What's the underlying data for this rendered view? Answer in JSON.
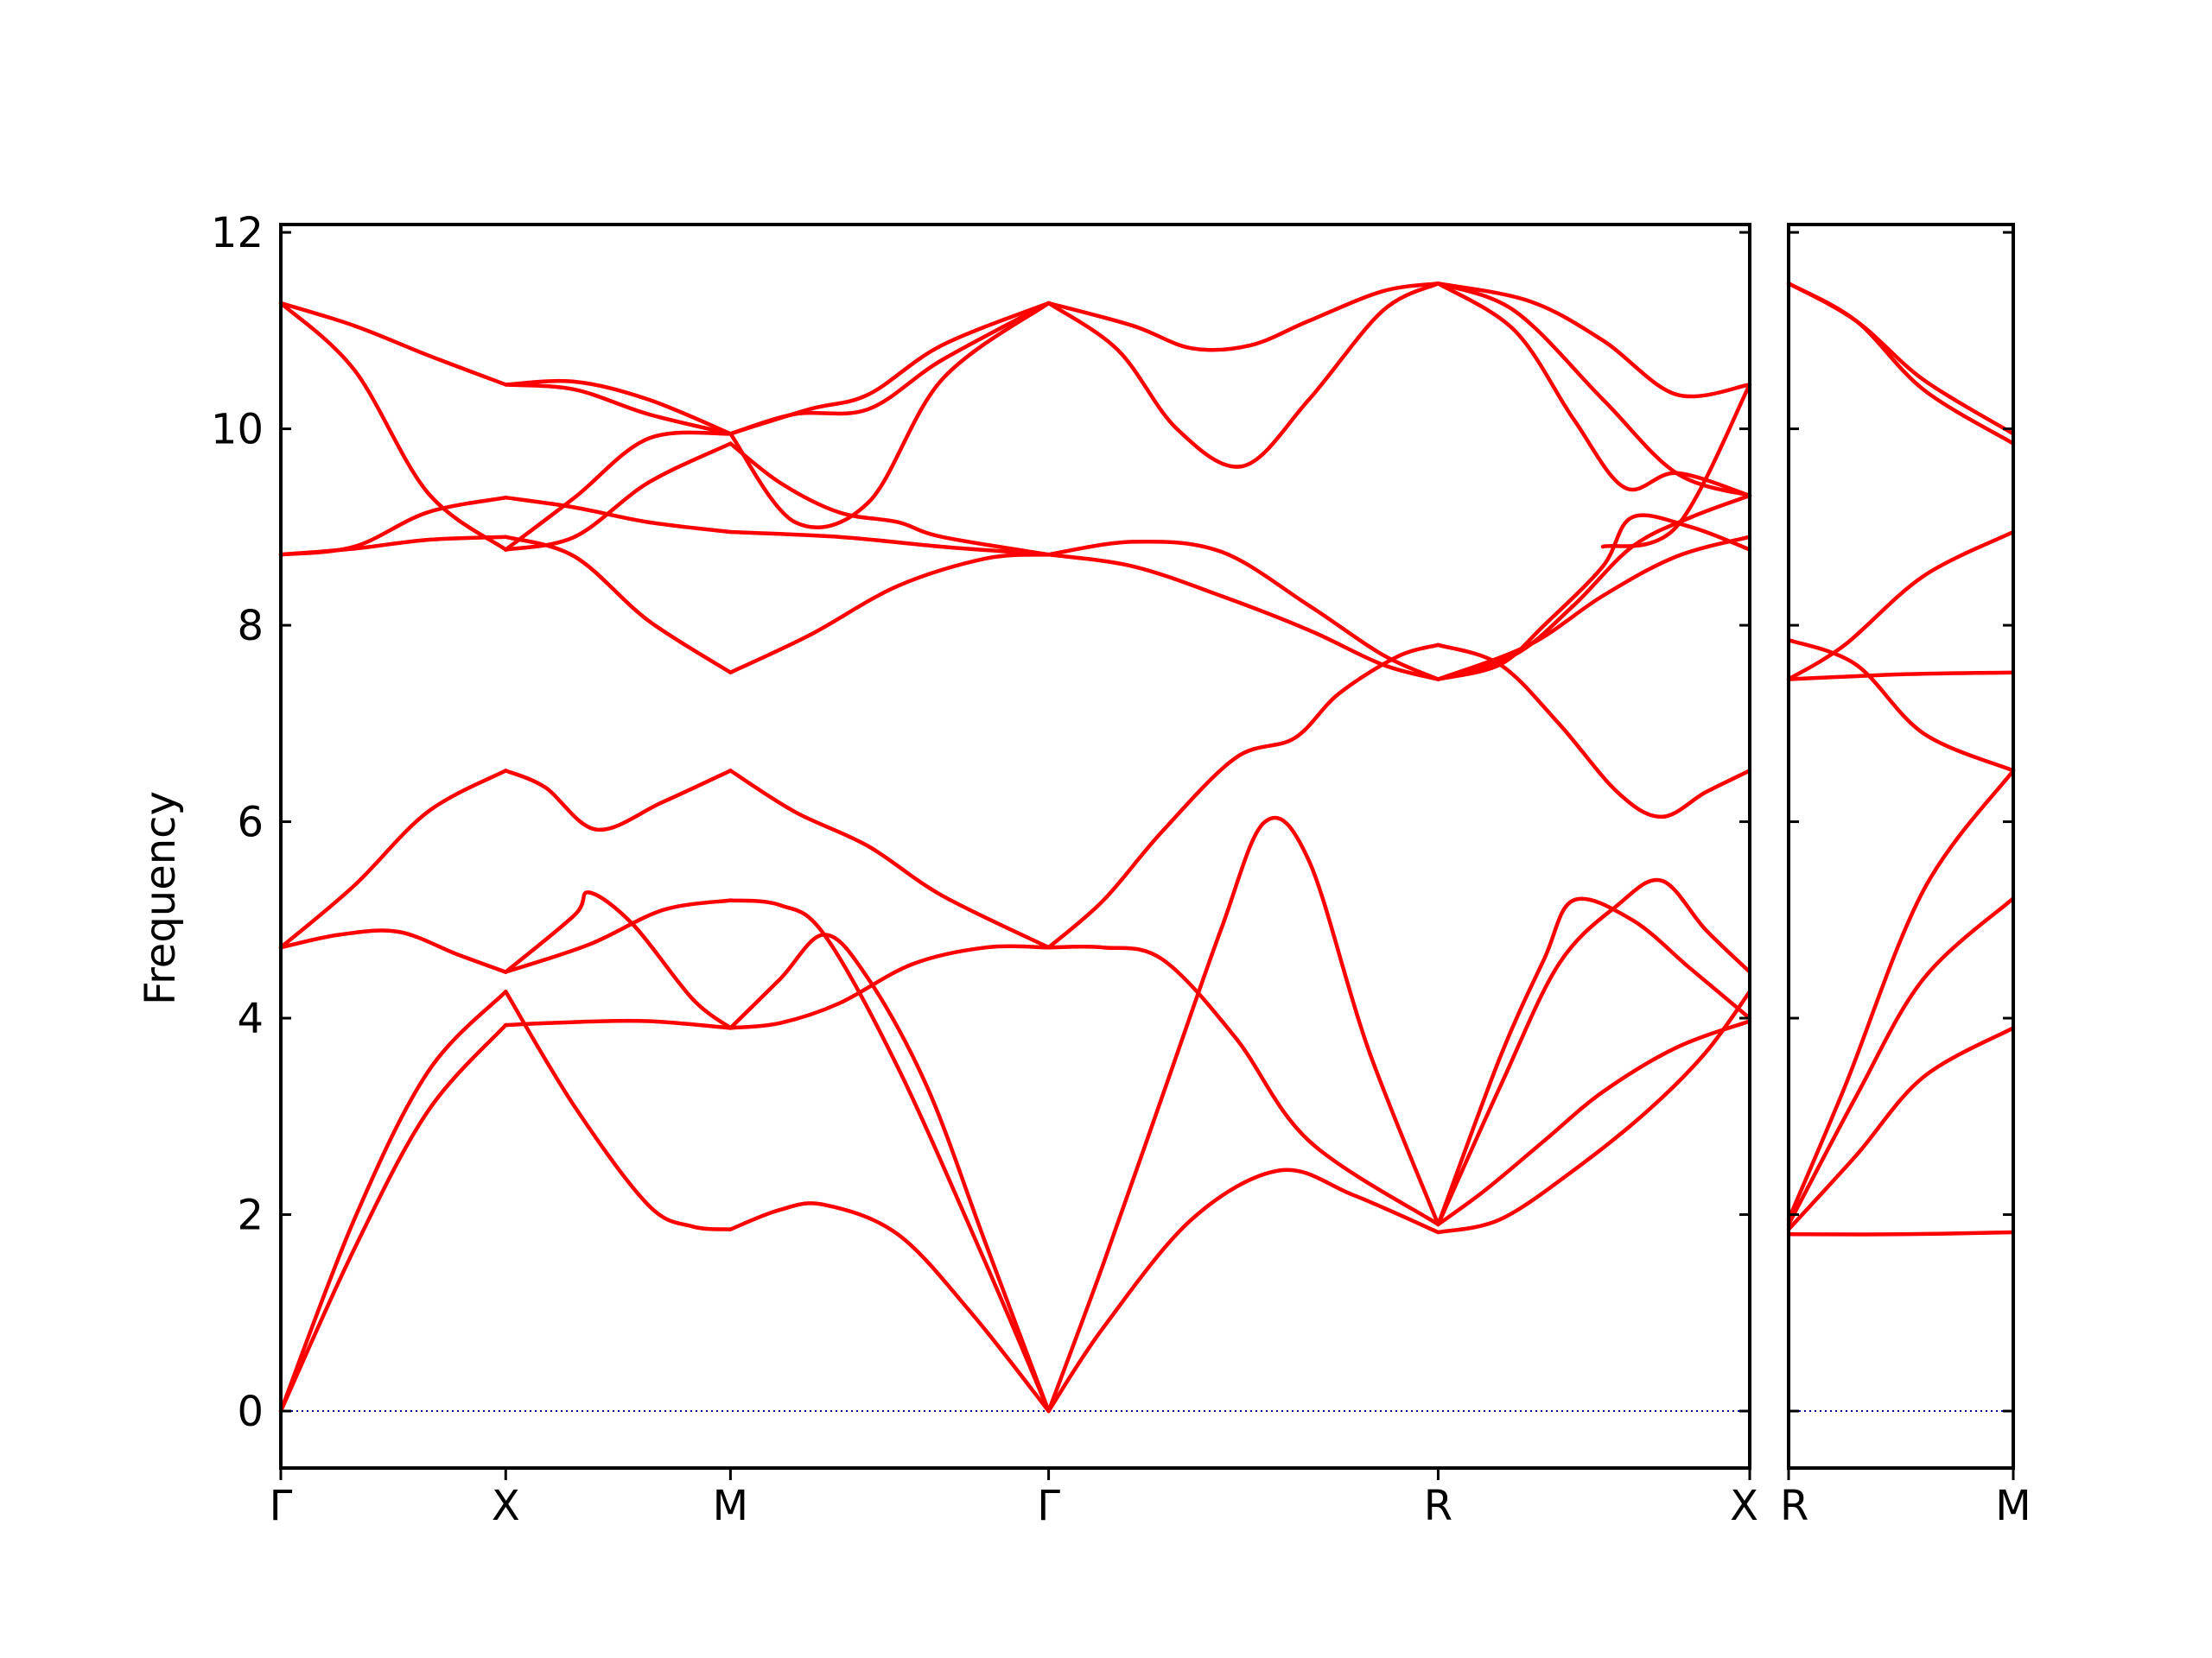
{
  "colors": {
    "band": "#ff0000",
    "zero_line": "#00008b",
    "frame": "#000000"
  },
  "chart_data": [
    {
      "type": "line",
      "panel": "main",
      "ylabel": "Frequency",
      "ylim": [
        -0.58,
        12.08
      ],
      "yticks": [
        0,
        2,
        4,
        6,
        8,
        10,
        12
      ],
      "ytick_labels": [
        "0",
        "2",
        "4",
        "6",
        "8",
        "10",
        "12"
      ],
      "xlim": [
        0,
        1
      ],
      "xticks": [
        0,
        0.1531,
        0.3061,
        0.5227,
        0.7879,
        1.0
      ],
      "xtick_labels": [
        "Γ",
        "X",
        "M",
        "Γ",
        "R",
        "X"
      ],
      "zero_line": true,
      "series": [
        {
          "x": [
            0,
            0.05,
            0.1,
            0.1531
          ],
          "values": [
            0,
            1.65,
            3.05,
            3.93
          ]
        },
        {
          "x": [
            0.1531,
            0.2,
            0.25,
            0.3061
          ],
          "values": [
            3.93,
            3.96,
            3.97,
            3.9
          ]
        },
        {
          "x": [
            0.3061,
            0.34,
            0.38,
            0.43,
            0.48,
            0.5227
          ],
          "values": [
            3.9,
            3.95,
            4.15,
            4.55,
            4.72,
            4.72
          ]
        },
        {
          "x": [
            0.5227,
            0.56,
            0.6,
            0.65,
            0.7,
            0.7879
          ],
          "values": [
            4.72,
            4.72,
            4.6,
            3.8,
            2.75,
            1.9
          ]
        },
        {
          "x": [
            0.7879,
            0.82,
            0.86,
            0.9,
            0.95,
            1.0
          ],
          "values": [
            1.9,
            2.25,
            2.75,
            3.25,
            3.7,
            3.97
          ]
        },
        {
          "x": [
            0,
            0.05,
            0.1,
            0.1531
          ],
          "values": [
            0,
            1.95,
            3.45,
            4.27
          ]
        },
        {
          "x": [
            0.1531,
            0.2,
            0.25,
            0.28,
            0.3061
          ],
          "values": [
            4.27,
            3.1,
            2.1,
            1.88,
            1.85
          ]
        },
        {
          "x": [
            0.3061,
            0.34,
            0.37,
            0.42,
            0.47,
            0.5227
          ],
          "values": [
            1.85,
            2.05,
            2.1,
            1.8,
            1.0,
            0
          ]
        },
        {
          "x": [
            0.5227,
            0.56,
            0.62,
            0.68,
            0.73,
            0.7879
          ],
          "values": [
            0,
            0.85,
            1.95,
            2.45,
            2.2,
            1.82
          ]
        },
        {
          "x": [
            0.7879,
            0.83,
            0.88,
            0.93,
            0.97,
            1.0
          ],
          "values": [
            1.82,
            1.95,
            2.45,
            3.05,
            3.65,
            4.27
          ]
        },
        {
          "x": [
            0,
            0.04,
            0.08,
            0.12,
            0.1531
          ],
          "values": [
            4.72,
            4.85,
            4.88,
            4.65,
            4.47
          ]
        },
        {
          "x": [
            0.1531,
            0.21,
            0.26,
            0.3061
          ],
          "values": [
            4.47,
            4.75,
            5.1,
            5.2
          ]
        },
        {
          "x": [
            0.3061,
            0.34,
            0.37,
            0.42,
            0.48,
            0.5227
          ],
          "values": [
            5.2,
            5.15,
            4.85,
            3.5,
            1.5,
            0
          ]
        },
        {
          "x": [
            0.5227,
            0.56,
            0.6,
            0.64,
            0.67,
            0.7,
            0.74,
            0.7879
          ],
          "values": [
            0,
            1.5,
            3.2,
            4.9,
            6.0,
            5.6,
            3.7,
            1.9
          ]
        },
        {
          "x": [
            0.7879,
            0.83,
            0.86,
            0.88,
            0.92,
            0.96,
            1.0
          ],
          "values": [
            1.9,
            3.6,
            4.6,
            5.2,
            5.0,
            4.5,
            4.0
          ]
        },
        {
          "x": [
            0,
            0.05,
            0.1,
            0.1531
          ],
          "values": [
            4.72,
            5.35,
            6.1,
            6.52
          ]
        },
        {
          "x": [
            0.1531,
            0.18,
            0.215,
            0.26,
            0.3061
          ],
          "values": [
            6.52,
            6.35,
            5.92,
            6.2,
            6.52
          ]
        },
        {
          "x": [
            0.3061,
            0.35,
            0.4,
            0.45,
            0.5227
          ],
          "values": [
            6.52,
            6.1,
            5.75,
            5.25,
            4.72
          ]
        },
        {
          "x": [
            0.5227,
            0.56,
            0.6,
            0.65,
            0.69,
            0.72,
            0.76,
            0.7879
          ],
          "values": [
            4.72,
            5.2,
            5.9,
            6.65,
            6.85,
            7.3,
            7.68,
            7.8
          ]
        },
        {
          "x": [
            0.7879,
            0.83,
            0.87,
            0.91,
            0.94,
            0.97,
            1.0
          ],
          "values": [
            7.8,
            7.6,
            7.0,
            6.3,
            6.05,
            6.3,
            6.52
          ]
        },
        {
          "x": [
            0.1531,
            0.2,
            0.21,
            0.24,
            0.28,
            0.3061
          ],
          "values": [
            4.47,
            5.05,
            5.28,
            4.95,
            4.2,
            3.9
          ]
        },
        {
          "x": [
            0.3061,
            0.34,
            0.37,
            0.4,
            0.44,
            0.48,
            0.5227
          ],
          "values": [
            3.9,
            4.4,
            4.85,
            4.4,
            3.3,
            1.7,
            0
          ]
        },
        {
          "x": [
            0.7879,
            0.83,
            0.87,
            0.91,
            0.94,
            0.97,
            1.0
          ],
          "values": [
            1.9,
            3.3,
            4.55,
            5.15,
            5.4,
            4.9,
            4.47
          ]
        },
        {
          "x": [
            0,
            0.05,
            0.1,
            0.1531
          ],
          "values": [
            8.72,
            8.78,
            8.87,
            8.9
          ]
        },
        {
          "x": [
            0.1531,
            0.2,
            0.25,
            0.3061
          ],
          "values": [
            8.9,
            8.7,
            8.05,
            7.52
          ]
        },
        {
          "x": [
            0.3061,
            0.36,
            0.42,
            0.48,
            0.5227
          ],
          "values": [
            7.52,
            7.9,
            8.4,
            8.68,
            8.72
          ]
        },
        {
          "x": [
            0.5227,
            0.58,
            0.64,
            0.7,
            0.75,
            0.7879
          ],
          "values": [
            8.72,
            8.85,
            8.75,
            8.2,
            7.7,
            7.45
          ]
        },
        {
          "x": [
            0.7879,
            0.85,
            0.9,
            0.95,
            1.0
          ],
          "values": [
            7.45,
            7.8,
            8.3,
            8.7,
            8.9
          ]
        },
        {
          "x": [
            0,
            0.05,
            0.1,
            0.1531
          ],
          "values": [
            8.72,
            8.8,
            9.15,
            9.3
          ]
        },
        {
          "x": [
            0.1531,
            0.2,
            0.25,
            0.3061
          ],
          "values": [
            9.3,
            9.2,
            9.05,
            8.95
          ]
        },
        {
          "x": [
            0.3061,
            0.38,
            0.45,
            0.5227
          ],
          "values": [
            8.95,
            8.9,
            8.8,
            8.72
          ]
        },
        {
          "x": [
            0.5227,
            0.58,
            0.64,
            0.7,
            0.75,
            0.7879
          ],
          "values": [
            8.72,
            8.6,
            8.3,
            7.95,
            7.6,
            7.45
          ]
        },
        {
          "x": [
            0.7879,
            0.84,
            0.88,
            0.92,
            0.96,
            1.0
          ],
          "values": [
            7.45,
            7.7,
            8.2,
            8.8,
            9.1,
            9.32
          ]
        },
        {
          "x": [
            0.1531,
            0.2,
            0.25,
            0.3061
          ],
          "values": [
            8.77,
            8.9,
            9.45,
            9.85
          ]
        },
        {
          "x": [
            0.3061,
            0.34,
            0.38,
            0.42,
            0.45,
            0.5227
          ],
          "values": [
            9.85,
            9.45,
            9.15,
            9.05,
            8.9,
            8.72
          ]
        },
        {
          "x": [
            0.7879,
            0.83,
            0.86,
            0.9,
            0.92,
            0.96,
            1.0
          ],
          "values": [
            7.45,
            7.6,
            8.0,
            8.6,
            9.1,
            9.0,
            8.77
          ]
        },
        {
          "x": [
            0,
            0.05,
            0.1,
            0.1531
          ],
          "values": [
            11.28,
            11.05,
            10.75,
            10.45
          ]
        },
        {
          "x": [
            0.1531,
            0.2,
            0.25,
            0.3061
          ],
          "values": [
            10.45,
            10.4,
            10.15,
            9.95
          ]
        },
        {
          "x": [
            0.3061,
            0.35,
            0.4,
            0.45,
            0.5227
          ],
          "values": [
            9.95,
            10.15,
            10.2,
            10.7,
            11.28
          ]
        },
        {
          "x": [
            0.5227,
            0.58,
            0.62,
            0.66,
            0.7,
            0.75,
            0.7879
          ],
          "values": [
            11.28,
            11.05,
            10.82,
            10.85,
            11.1,
            11.4,
            11.48
          ]
        },
        {
          "x": [
            0.7879,
            0.85,
            0.9,
            0.95,
            1.0
          ],
          "values": [
            11.48,
            11.3,
            10.9,
            10.35,
            10.45
          ]
        },
        {
          "x": [
            0,
            0.05,
            0.1,
            0.1531
          ],
          "values": [
            11.28,
            10.6,
            9.35,
            8.77
          ]
        },
        {
          "x": [
            0.1531,
            0.2,
            0.25,
            0.3061
          ],
          "values": [
            8.77,
            9.3,
            9.9,
            9.95
          ]
        },
        {
          "x": [
            0.3061,
            0.36,
            0.4,
            0.45,
            0.5227
          ],
          "values": [
            9.95,
            10.2,
            10.35,
            10.85,
            11.28
          ]
        },
        {
          "x": [
            0.5227,
            0.57,
            0.61,
            0.655,
            0.7,
            0.75,
            0.7879
          ],
          "values": [
            11.28,
            10.8,
            10.0,
            9.62,
            10.3,
            11.2,
            11.48
          ]
        },
        {
          "x": [
            0.7879,
            0.84,
            0.88,
            0.915,
            0.95,
            1.0
          ],
          "values": [
            11.48,
            11.0,
            10.1,
            9.4,
            9.55,
            9.32
          ]
        },
        {
          "x": [
            0.1531,
            0.2,
            0.25,
            0.3061
          ],
          "values": [
            10.45,
            10.48,
            10.3,
            9.95
          ]
        },
        {
          "x": [
            0.3061,
            0.35,
            0.4,
            0.45,
            0.5227
          ],
          "values": [
            9.95,
            9.05,
            9.25,
            10.5,
            11.28
          ]
        },
        {
          "x": [
            0.7879,
            0.84,
            0.9,
            0.95,
            1.0
          ],
          "values": [
            11.48,
            11.2,
            10.3,
            9.55,
            9.32
          ]
        },
        {
          "x": [
            0.9,
            0.95,
            1.0
          ],
          "values": [
            8.8,
            9.0,
            10.45
          ]
        }
      ]
    },
    {
      "type": "line",
      "panel": "right",
      "ylim": [
        -0.58,
        12.08
      ],
      "xlim": [
        0,
        1
      ],
      "xticks": [
        0,
        1
      ],
      "xtick_labels": [
        "R",
        "M"
      ],
      "zero_line": true,
      "series": [
        {
          "x": [
            0,
            0.5,
            1.0
          ],
          "values": [
            1.8,
            1.8,
            1.82
          ]
        },
        {
          "x": [
            0,
            0.3,
            0.6,
            1.0
          ],
          "values": [
            1.85,
            2.6,
            3.4,
            3.9
          ]
        },
        {
          "x": [
            0,
            0.3,
            0.6,
            1.0
          ],
          "values": [
            1.9,
            3.2,
            4.4,
            5.22
          ]
        },
        {
          "x": [
            0,
            0.25,
            0.6,
            1.0
          ],
          "values": [
            1.95,
            3.3,
            5.3,
            6.52
          ]
        },
        {
          "x": [
            0,
            0.3,
            0.6,
            1.0
          ],
          "values": [
            7.85,
            7.6,
            6.9,
            6.52
          ]
        },
        {
          "x": [
            0,
            0.5,
            1.0
          ],
          "values": [
            7.45,
            7.5,
            7.52
          ]
        },
        {
          "x": [
            0,
            0.25,
            0.6,
            1.0
          ],
          "values": [
            7.45,
            7.8,
            8.5,
            8.95
          ]
        },
        {
          "x": [
            0,
            0.3,
            0.6,
            1.0
          ],
          "values": [
            11.48,
            11.1,
            10.4,
            9.85
          ]
        },
        {
          "x": [
            0,
            0.3,
            0.6,
            1.0
          ],
          "values": [
            11.48,
            11.1,
            10.5,
            9.95
          ]
        }
      ]
    }
  ]
}
